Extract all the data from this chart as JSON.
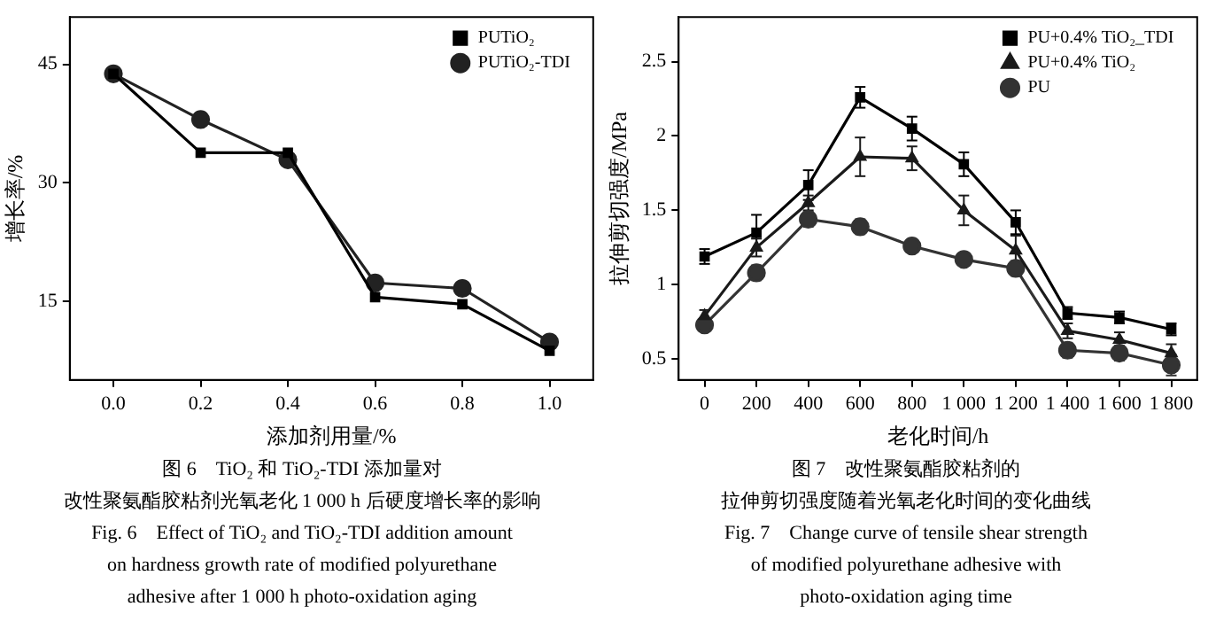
{
  "chart_data": [
    {
      "type": "line",
      "xlabel": "添加剂用量/%",
      "ylabel": "增长率/%",
      "x": [
        0,
        0.2,
        0.4,
        0.6,
        0.8,
        1.0
      ],
      "xlim": [
        -0.1,
        1.1
      ],
      "xticks": [
        {
          "value": 0,
          "label": "0.0"
        },
        {
          "value": 0.2,
          "label": "0.2"
        },
        {
          "value": 0.4,
          "label": "0.4"
        },
        {
          "value": 0.6,
          "label": "0.6"
        },
        {
          "value": 0.8,
          "label": "0.8"
        },
        {
          "value": 1.0,
          "label": "1.0"
        }
      ],
      "ylim": [
        5,
        51
      ],
      "yticks": [
        15,
        30,
        45
      ],
      "series": [
        {
          "name": "PUTiO₂",
          "color": "#000000",
          "marker": "square",
          "values": [
            43.8,
            33.8,
            33.8,
            15.5,
            14.6,
            8.7
          ]
        },
        {
          "name": "PUTiO₂-TDI",
          "color": "#222222",
          "marker": "circle",
          "values": [
            43.8,
            38.0,
            32.9,
            17.3,
            16.6,
            9.8
          ]
        }
      ],
      "legend": "top right",
      "grid": false,
      "annotations": [
        "图 6　TiO₂ 和 TiO₂-TDI 添加量对",
        "改性聚氨酯胶粘剂光氧老化 1 000 h 后硬度增长率的影响",
        "Fig. 6　Effect of TiO₂ and TiO₂-TDI addition amount",
        "on hardness growth rate of modified polyurethane",
        "adhesive after 1 000 h photo-oxidation aging"
      ]
    },
    {
      "type": "line",
      "xlabel": "老化时间/h",
      "ylabel": "拉伸剪切强度/MPa",
      "x": [
        0,
        200,
        400,
        600,
        800,
        1000,
        1200,
        1400,
        1600,
        1800
      ],
      "xlim": [
        -100,
        1900
      ],
      "xticks": [
        0,
        200,
        400,
        600,
        800,
        {
          "value": 1000,
          "label": "1 000"
        },
        {
          "value": 1200,
          "label": "1 200"
        },
        {
          "value": 1400,
          "label": "1 400"
        },
        {
          "value": 1600,
          "label": "1 600"
        },
        {
          "value": 1800,
          "label": "1 800"
        }
      ],
      "ylim": [
        0.36,
        2.8
      ],
      "yticks": [
        0.5,
        1.0,
        1.5,
        2.0,
        2.5
      ],
      "series": [
        {
          "name": "PU+0.4% TiO₂_TDI",
          "color": "#000000",
          "marker": "square",
          "values": [
            1.19,
            1.35,
            1.67,
            2.26,
            2.05,
            1.81,
            1.42,
            0.81,
            0.78,
            0.7
          ],
          "errors": [
            0.05,
            0.12,
            0.1,
            0.07,
            0.08,
            0.08,
            0.08,
            0.04,
            0.04,
            0.04
          ]
        },
        {
          "name": "PU+0.4% TiO₂",
          "color": "#1a1a1a",
          "marker": "triangle",
          "values": [
            0.79,
            1.25,
            1.55,
            1.86,
            1.85,
            1.5,
            1.23,
            0.69,
            0.63,
            0.54
          ],
          "errors": [
            0.04,
            0.06,
            0.05,
            0.13,
            0.08,
            0.1,
            0.1,
            0.05,
            0.05,
            0.06
          ]
        },
        {
          "name": "PU",
          "color": "#333333",
          "marker": "circle",
          "values": [
            0.73,
            1.08,
            1.44,
            1.39,
            1.26,
            1.17,
            1.11,
            0.56,
            0.54,
            0.46
          ],
          "errors": [
            0.04,
            0.05,
            0.05,
            0.05,
            0.04,
            0.03,
            0.05,
            0.05,
            0.05,
            0.07
          ]
        }
      ],
      "legend": "top right",
      "grid": false,
      "annotations": [
        "图 7　改性聚氨酯胶粘剂的",
        "拉伸剪切强度随着光氧老化时间的变化曲线",
        "Fig. 7　Change curve of tensile shear strength",
        "of modified polyurethane adhesive with",
        "photo-oxidation aging time"
      ]
    }
  ]
}
